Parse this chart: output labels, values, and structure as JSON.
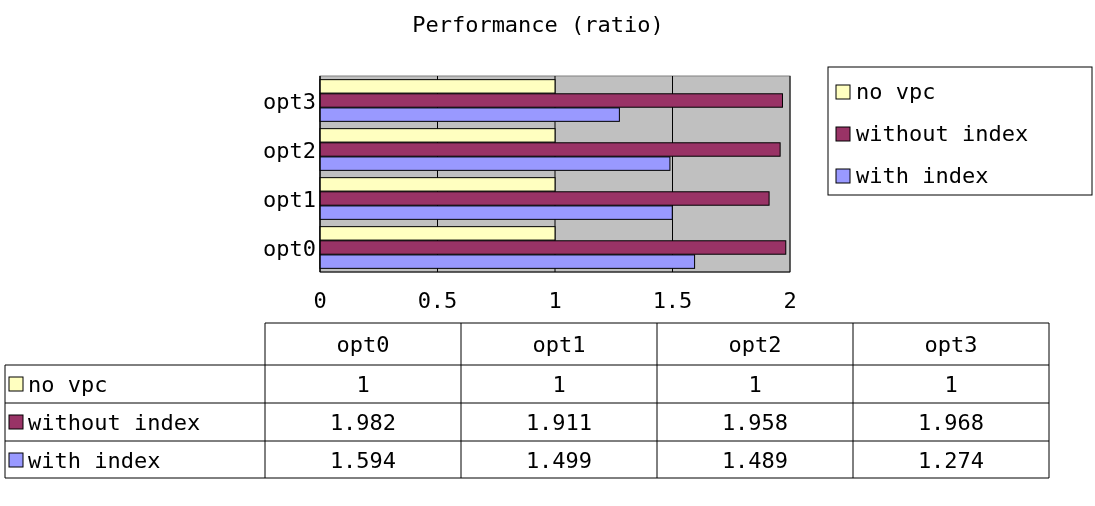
{
  "chart_data": [
    {
      "type": "bar",
      "title": "Performance (ratio)",
      "orientation": "horizontal",
      "categories": [
        "opt3",
        "opt2",
        "opt1",
        "opt0"
      ],
      "series": [
        {
          "name": "no vpc",
          "color": "#ffffc0",
          "values": [
            1,
            1,
            1,
            1
          ]
        },
        {
          "name": "without index",
          "color": "#993366",
          "values": [
            1.968,
            1.958,
            1.911,
            1.982
          ]
        },
        {
          "name": "with index",
          "color": "#9999ff",
          "values": [
            1.274,
            1.489,
            1.499,
            1.594
          ]
        }
      ],
      "xlim": [
        0,
        2
      ],
      "xticks": [
        0,
        0.5,
        1,
        1.5,
        2
      ],
      "grid": "x",
      "legend": "right"
    },
    {
      "type": "other",
      "categories": [
        "opt0",
        "opt1",
        "opt2",
        "opt3"
      ],
      "series": [
        {
          "name": "no vpc",
          "color": "#ffffc0",
          "values": [
            1,
            1,
            1,
            1
          ]
        },
        {
          "name": "without index",
          "color": "#993366",
          "values": [
            1.982,
            1.911,
            1.958,
            1.968
          ]
        },
        {
          "name": "with index",
          "color": "#9999ff",
          "values": [
            1.594,
            1.499,
            1.489,
            1.274
          ]
        }
      ],
      "legend": "left",
      "data_labels": true
    }
  ]
}
